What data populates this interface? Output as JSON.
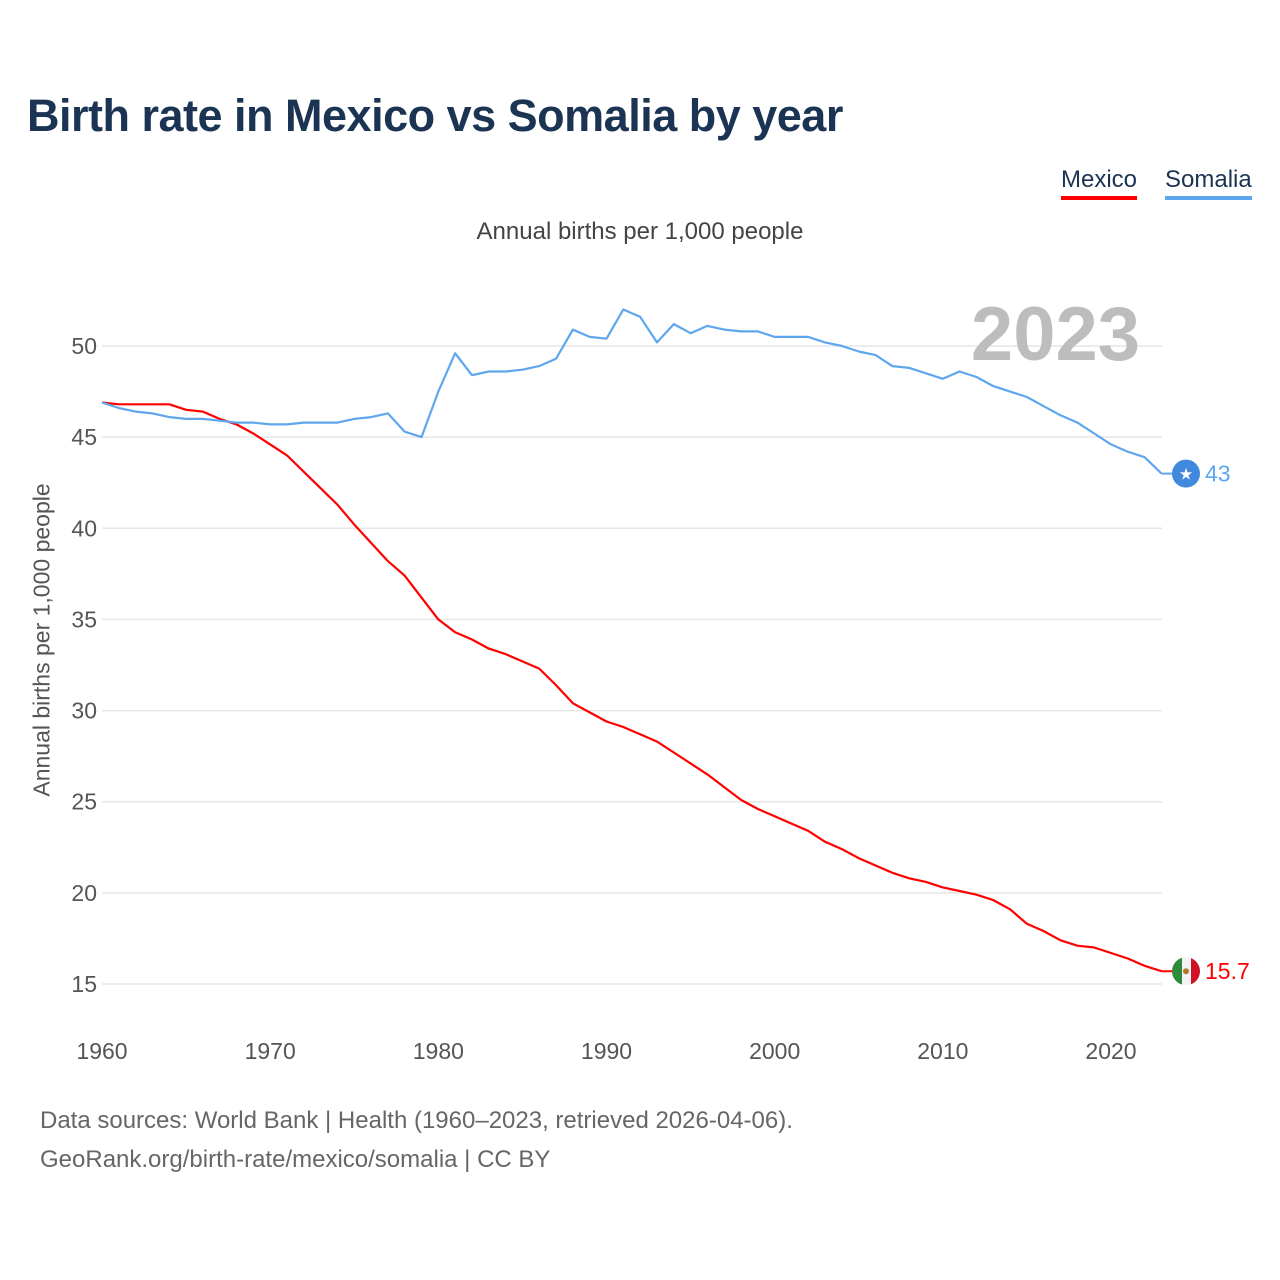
{
  "title": "Birth rate in Mexico vs Somalia by year",
  "subtitle": "Annual births per 1,000 people",
  "year_badge": "2023",
  "footer": {
    "line1": "Data sources: World Bank | Health (1960–2023, retrieved 2026-04-06).",
    "line2": "GeoRank.org/birth-rate/mexico/somalia | CC BY"
  },
  "chart_data": {
    "type": "line",
    "title": "Birth rate in Mexico vs Somalia by year",
    "ylabel": "Annual births per 1,000 people",
    "xlabel": "",
    "xlim": [
      1960,
      2023
    ],
    "ylim": [
      13,
      53
    ],
    "xticks": [
      1960,
      1970,
      1980,
      1990,
      2000,
      2010,
      2020
    ],
    "yticks": [
      15,
      20,
      25,
      30,
      35,
      40,
      45,
      50
    ],
    "grid": true,
    "legend": "top-right",
    "x": [
      1960,
      1961,
      1962,
      1963,
      1964,
      1965,
      1966,
      1967,
      1968,
      1969,
      1970,
      1971,
      1972,
      1973,
      1974,
      1975,
      1976,
      1977,
      1978,
      1979,
      1980,
      1981,
      1982,
      1983,
      1984,
      1985,
      1986,
      1987,
      1988,
      1989,
      1990,
      1991,
      1992,
      1993,
      1994,
      1995,
      1996,
      1997,
      1998,
      1999,
      2000,
      2001,
      2002,
      2003,
      2004,
      2005,
      2006,
      2007,
      2008,
      2009,
      2010,
      2011,
      2012,
      2013,
      2014,
      2015,
      2016,
      2017,
      2018,
      2019,
      2020,
      2021,
      2022,
      2023
    ],
    "series": [
      {
        "name": "Mexico",
        "color": "#ff0000",
        "end_label": "15.7",
        "values": [
          46.9,
          46.8,
          46.8,
          46.8,
          46.8,
          46.5,
          46.4,
          46.0,
          45.7,
          45.2,
          44.6,
          44.0,
          43.1,
          42.2,
          41.3,
          40.2,
          39.2,
          38.2,
          37.4,
          36.2,
          35.0,
          34.3,
          33.9,
          33.4,
          33.1,
          32.7,
          32.3,
          31.4,
          30.4,
          29.9,
          29.4,
          29.1,
          28.7,
          28.3,
          27.7,
          27.1,
          26.5,
          25.8,
          25.1,
          24.6,
          24.2,
          23.8,
          23.4,
          22.8,
          22.4,
          21.9,
          21.5,
          21.1,
          20.8,
          20.6,
          20.3,
          20.1,
          19.9,
          19.6,
          19.1,
          18.3,
          17.9,
          17.4,
          17.1,
          17.0,
          16.7,
          16.4,
          16.0,
          15.7
        ]
      },
      {
        "name": "Somalia",
        "color": "#5ea6ee",
        "end_label": "43",
        "values": [
          46.9,
          46.6,
          46.4,
          46.3,
          46.1,
          46.0,
          46.0,
          45.9,
          45.8,
          45.8,
          45.7,
          45.7,
          45.8,
          45.8,
          45.8,
          46.0,
          46.1,
          46.3,
          45.3,
          45.0,
          47.5,
          49.6,
          48.4,
          48.6,
          48.6,
          48.7,
          48.9,
          49.3,
          50.9,
          50.5,
          50.4,
          52.0,
          51.6,
          50.2,
          51.2,
          50.7,
          51.1,
          50.9,
          50.8,
          50.8,
          50.5,
          50.5,
          50.5,
          50.2,
          50.0,
          49.7,
          49.5,
          48.9,
          48.8,
          48.5,
          48.2,
          48.6,
          48.3,
          47.8,
          47.5,
          47.2,
          46.7,
          46.2,
          45.8,
          45.2,
          44.6,
          44.2,
          43.9,
          43.0
        ]
      }
    ]
  }
}
